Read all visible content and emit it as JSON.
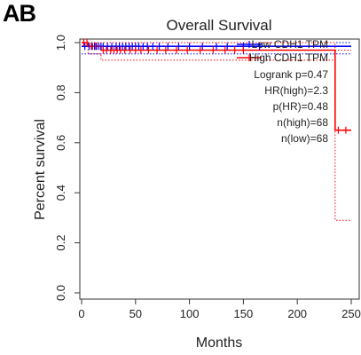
{
  "panel_label": "AB",
  "chart_data": {
    "type": "line",
    "title": "Overall Survival",
    "xlabel": "Months",
    "ylabel": "Percent survival",
    "xlim": [
      0,
      250
    ],
    "ylim": [
      0,
      1.0
    ],
    "x_ticks": [
      "0",
      "50",
      "100",
      "150",
      "200",
      "250"
    ],
    "y_ticks": [
      "0.0",
      "0.2",
      "0.4",
      "0.6",
      "0.8",
      "1.0"
    ],
    "grid": false,
    "legend": {
      "placement": "top-right",
      "entries": [
        "Low CDH1 TPM",
        "High CDH1 TPM"
      ]
    },
    "stats": [
      "Logrank p=0.47",
      "HR(high)=2.3",
      "p(HR)=0.48",
      "n(high)=68",
      "n(low)=68"
    ],
    "series": [
      {
        "name": "Low CDH1 TPM",
        "color": "#0000ff",
        "x": [
          0,
          250
        ],
        "y": [
          0.985,
          0.985
        ],
        "ci_upper": [
          1.0,
          1.0
        ],
        "ci_lower": [
          0.955,
          0.955
        ],
        "censor_x": [
          3,
          7,
          10,
          12,
          14,
          16,
          18,
          20,
          24,
          28,
          32,
          35,
          38,
          41,
          44,
          47,
          50,
          53,
          57,
          61,
          66,
          72,
          80,
          90,
          100,
          112,
          125,
          135,
          150,
          165
        ]
      },
      {
        "name": "High CDH1 TPM",
        "color": "#ff0000",
        "x": [
          0,
          6,
          6,
          18,
          18,
          235,
          235,
          250
        ],
        "y": [
          1.0,
          1.0,
          0.985,
          0.985,
          0.97,
          0.97,
          0.65,
          0.65
        ],
        "ci_upper": [
          1.0,
          1.0,
          1.0,
          1.0,
          1.0,
          1.0,
          0.97,
          0.97
        ],
        "ci_lower": [
          0.985,
          0.985,
          0.955,
          0.955,
          0.93,
          0.93,
          0.29,
          0.29
        ],
        "censor_x": [
          2,
          5,
          9,
          13,
          20,
          23,
          27,
          30,
          33,
          36,
          40,
          45,
          50,
          55,
          62,
          70,
          78,
          88,
          98,
          110,
          122,
          133,
          142,
          150,
          238,
          245
        ]
      }
    ]
  }
}
